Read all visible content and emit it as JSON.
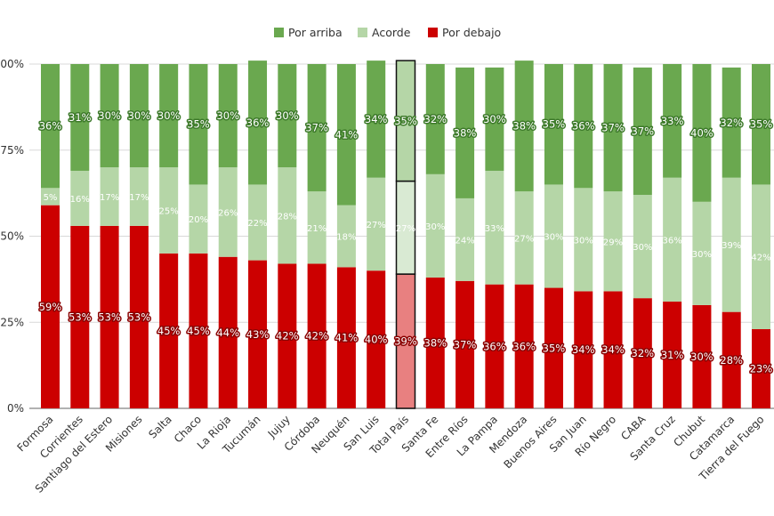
{
  "chart_data": {
    "type": "bar",
    "stacked": true,
    "percent_stacked": true,
    "title": "",
    "xlabel": "",
    "ylabel": "",
    "ylim": [
      0,
      100
    ],
    "yticks": [
      "0%",
      "25%",
      "50%",
      "75%",
      "100%"
    ],
    "grid": true,
    "legend_position": "top",
    "highlighted_category": "Total País",
    "categories": [
      "Formosa",
      "Corrientes",
      "Santiago del Estero",
      "Misiones",
      "Salta",
      "Chaco",
      "La Rioja",
      "Tucumán",
      "Jujuy",
      "Córdoba",
      "Neuquén",
      "San Luis",
      "Total País",
      "Santa Fe",
      "Entre Ríos",
      "La Pampa",
      "Mendoza",
      "Buenos Aires",
      "San Juan",
      "Río Negro",
      "CABA",
      "Santa Cruz",
      "Chubut",
      "Catamarca",
      "Tierra del Fuego"
    ],
    "series": [
      {
        "name": "Por debajo",
        "color": "#cc0000",
        "values": [
          59,
          53,
          53,
          53,
          45,
          45,
          44,
          43,
          42,
          42,
          41,
          40,
          39,
          38,
          37,
          36,
          36,
          35,
          34,
          34,
          32,
          31,
          30,
          28,
          23
        ]
      },
      {
        "name": "Acorde",
        "color": "#b5d6a7",
        "values": [
          5,
          16,
          17,
          17,
          25,
          20,
          26,
          22,
          28,
          21,
          18,
          27,
          27,
          30,
          24,
          33,
          27,
          30,
          30,
          29,
          30,
          36,
          30,
          39,
          42
        ]
      },
      {
        "name": "Por arriba",
        "color": "#6aa84f",
        "values": [
          36,
          31,
          30,
          30,
          30,
          35,
          30,
          36,
          30,
          37,
          41,
          34,
          35,
          32,
          38,
          30,
          38,
          35,
          36,
          37,
          37,
          33,
          40,
          32,
          35
        ]
      }
    ],
    "legend_order": [
      "Por arriba",
      "Acorde",
      "Por debajo"
    ],
    "highlight_colors": {
      "Por debajo": "#e88080",
      "Acorde": "#d9ead3",
      "Por arriba": "#b5d6a7"
    }
  }
}
